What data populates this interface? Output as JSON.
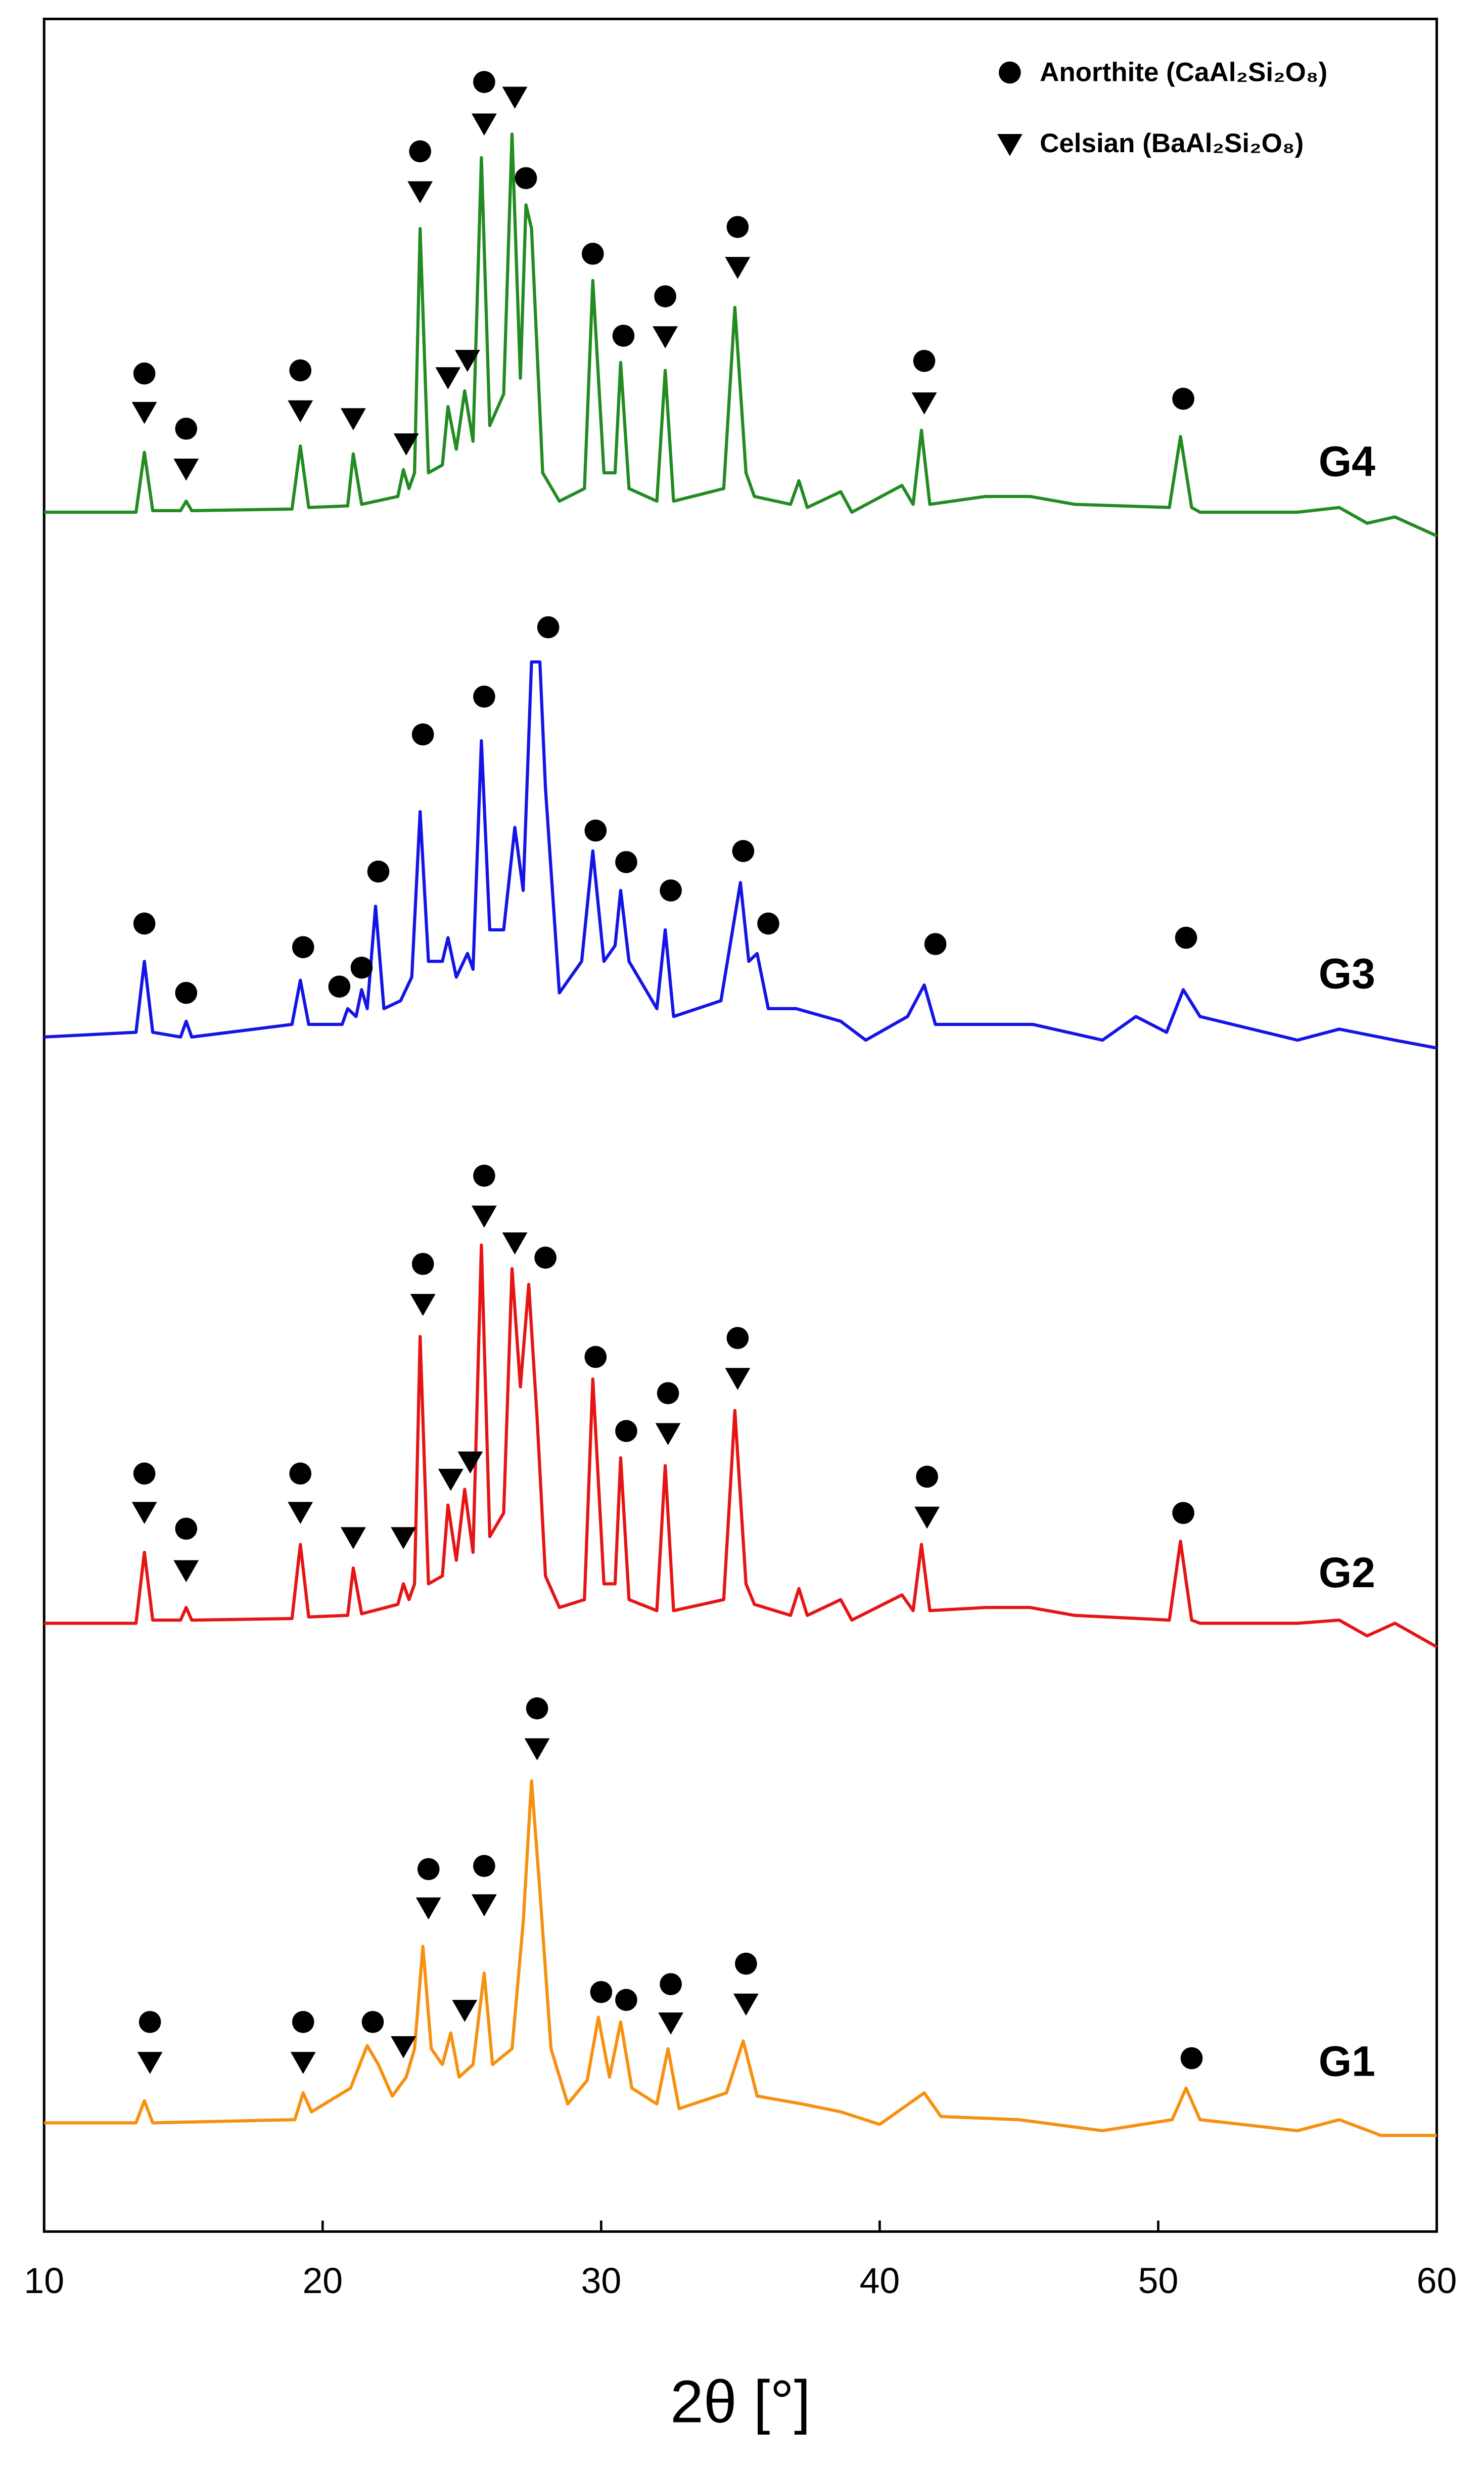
{
  "chart_data": {
    "type": "line",
    "xlabel": "2θ [°]",
    "xlim": [
      10,
      60
    ],
    "xticks": [
      10,
      20,
      30,
      40,
      50,
      60
    ],
    "ylim": [
      0,
      1404
    ],
    "legend": [
      "Anorthite (CaAl₂Si₂O₈)",
      "Celsian (BaAl₂Si₂O₈)"
    ],
    "series": [
      {
        "name": "G4",
        "color": "#228b22",
        "x": [
          10,
          13.3,
          13.6,
          13.9,
          14.9,
          15.1,
          15.3,
          18.9,
          19.2,
          19.5,
          20.9,
          21.1,
          21.4,
          22.7,
          22.9,
          23.1,
          23.3,
          23.5,
          23.8,
          24.3,
          24.5,
          24.8,
          25.1,
          25.4,
          25.7,
          26.0,
          26.5,
          26.8,
          27.1,
          27.3,
          27.5,
          27.9,
          28.5,
          29.4,
          29.7,
          30.1,
          30.5,
          30.7,
          31.0,
          32.0,
          32.3,
          32.6,
          34.4,
          34.8,
          35.2,
          35.5,
          36.8,
          37.1,
          37.4,
          38.6,
          39.0,
          40.8,
          41.2,
          41.5,
          41.8,
          43.8,
          45.4,
          47,
          50.4,
          50.8,
          51.2,
          51.5,
          55,
          56.5,
          57.5,
          58.5,
          60
        ],
        "values": [
          1091,
          1091,
          1129,
          1092,
          1092,
          1098,
          1092,
          1093,
          1133,
          1094,
          1095,
          1128,
          1096,
          1101,
          1118,
          1106,
          1116,
          1271,
          1116,
          1121,
          1158,
          1131,
          1168,
          1136,
          1316,
          1146,
          1166,
          1331,
          1176,
          1286,
          1271,
          1116,
          1098,
          1106,
          1238,
          1116,
          1116,
          1186,
          1106,
          1098,
          1181,
          1098,
          1106,
          1221,
          1116,
          1101,
          1096,
          1111,
          1094,
          1104,
          1091,
          1108,
          1096,
          1143,
          1096,
          1101,
          1101,
          1096,
          1094,
          1139,
          1094,
          1091,
          1091,
          1094,
          1084,
          1088,
          1076
        ],
        "anorthite": {
          "x": [
            13.6,
            15.1,
            19.2,
            23.5,
            25.8,
            27.3,
            29.7,
            30.8,
            32.3,
            34.9,
            41.6,
            50.9
          ],
          "y": [
            1179,
            1144,
            1181,
            1320,
            1364,
            1303,
            1255,
            1203,
            1228,
            1272,
            1187,
            1163
          ]
        },
        "celsian": {
          "x": [
            13.6,
            15.1,
            19.2,
            21.1,
            23,
            23.5,
            24.5,
            25.2,
            25.8,
            26.9,
            32.3,
            34.9,
            41.6
          ],
          "y": [
            1154,
            1118,
            1155,
            1150,
            1134,
            1294,
            1176,
            1187,
            1337,
            1354,
            1202,
            1246,
            1160
          ]
        }
      },
      {
        "name": "G3",
        "color": "#1414e6",
        "x": [
          10,
          13.3,
          13.6,
          13.9,
          14.9,
          15.1,
          15.3,
          18.9,
          19.2,
          19.5,
          20.7,
          20.9,
          21.2,
          21.4,
          21.6,
          21.9,
          22.2,
          22.8,
          23.2,
          23.5,
          23.8,
          24.3,
          24.5,
          24.8,
          25.2,
          25.4,
          25.7,
          26.0,
          26.5,
          26.9,
          27.2,
          27.5,
          27.8,
          28.0,
          28.5,
          29.3,
          29.7,
          30.1,
          30.5,
          30.7,
          31.0,
          32.0,
          32.3,
          32.6,
          34.3,
          35.0,
          35.3,
          35.6,
          36.0,
          37.0,
          38.6,
          39.5,
          41.0,
          41.6,
          42.0,
          45.5,
          48,
          49.2,
          50.3,
          50.9,
          51.5,
          55,
          56.5,
          58.5,
          60
        ],
        "values": [
          758,
          761,
          806,
          761,
          758,
          768,
          758,
          766,
          794,
          766,
          766,
          776,
          771,
          788,
          776,
          841,
          776,
          781,
          796,
          901,
          806,
          806,
          821,
          796,
          811,
          801,
          946,
          826,
          826,
          891,
          851,
          996,
          996,
          916,
          786,
          806,
          876,
          806,
          816,
          851,
          806,
          776,
          826,
          771,
          781,
          856,
          806,
          811,
          776,
          776,
          768,
          756,
          771,
          791,
          766,
          766,
          756,
          771,
          761,
          788,
          771,
          756,
          763,
          756,
          751
        ],
        "anorthite": {
          "x": [
            13.6,
            15.1,
            19.3,
            20.6,
            21.4,
            22.0,
            23.6,
            25.8,
            28.1,
            29.8,
            30.9,
            32.5,
            35.1,
            36.0,
            42.0,
            51.0
          ],
          "y": [
            830,
            786,
            815,
            790,
            802,
            863,
            950,
            974,
            1018,
            889,
            869,
            851,
            876,
            830,
            817,
            821
          ]
        }
      },
      {
        "name": "G2",
        "color": "#e61414",
        "x": [
          10,
          13.3,
          13.6,
          13.9,
          14.9,
          15.1,
          15.3,
          18.9,
          19.2,
          19.5,
          20.9,
          21.1,
          21.4,
          22.7,
          22.9,
          23.1,
          23.3,
          23.5,
          23.8,
          24.3,
          24.5,
          24.8,
          25.1,
          25.4,
          25.7,
          26.0,
          26.5,
          26.8,
          27.1,
          27.4,
          27.7,
          28.0,
          28.5,
          29.4,
          29.7,
          30.1,
          30.5,
          30.7,
          31.0,
          32.0,
          32.3,
          32.6,
          34.4,
          34.8,
          35.2,
          35.5,
          36.8,
          37.1,
          37.4,
          38.6,
          39.0,
          40.8,
          41.2,
          41.5,
          41.8,
          43.8,
          45.4,
          47,
          50.4,
          50.8,
          51.2,
          51.5,
          55,
          56.5,
          57.5,
          58.5,
          60
        ],
        "values": [
          386,
          386,
          431,
          388,
          388,
          396,
          388,
          389,
          436,
          390,
          391,
          421,
          392,
          398,
          411,
          401,
          411,
          568,
          411,
          416,
          461,
          426,
          471,
          431,
          626,
          441,
          456,
          611,
          536,
          601,
          516,
          416,
          396,
          401,
          541,
          411,
          411,
          491,
          401,
          394,
          486,
          394,
          401,
          521,
          411,
          398,
          391,
          408,
          391,
          401,
          388,
          404,
          394,
          436,
          394,
          396,
          396,
          391,
          388,
          438,
          388,
          386,
          386,
          388,
          378,
          386,
          371
        ],
        "anorthite": {
          "x": [
            13.6,
            15.1,
            19.2,
            23.6,
            25.8,
            28.0,
            29.8,
            30.9,
            32.4,
            34.9,
            41.7,
            50.9
          ],
          "y": [
            481,
            446,
            481,
            614,
            670,
            618,
            555,
            508,
            532,
            567,
            479,
            456
          ]
        },
        "celsian": {
          "x": [
            13.6,
            15.1,
            19.2,
            21.1,
            22.9,
            23.6,
            24.6,
            25.3,
            25.8,
            26.9,
            32.4,
            34.9,
            41.7
          ],
          "y": [
            456,
            419,
            456,
            440,
            440,
            588,
            477,
            488,
            644,
            627,
            506,
            541,
            453
          ]
        }
      },
      {
        "name": "G1",
        "color": "#f7900f",
        "x": [
          10,
          13.3,
          13.6,
          13.9,
          19.0,
          19.3,
          19.6,
          21.0,
          21.6,
          22.0,
          22.5,
          23.0,
          23.3,
          23.6,
          23.9,
          24.3,
          24.6,
          24.9,
          25.4,
          25.8,
          26.1,
          26.8,
          27.2,
          27.5,
          27.8,
          28.2,
          28.8,
          29.5,
          29.9,
          30.3,
          30.7,
          31.1,
          32.0,
          32.4,
          32.8,
          34.5,
          35.1,
          35.6,
          37.2,
          38.6,
          40,
          41.6,
          42.2,
          45,
          48,
          50.5,
          51.0,
          51.5,
          55,
          56.5,
          58,
          60
        ],
        "values": [
          69,
          69,
          83,
          69,
          71,
          88,
          76,
          91,
          118,
          106,
          86,
          98,
          116,
          181,
          116,
          106,
          126,
          98,
          106,
          164,
          106,
          116,
          196,
          286,
          216,
          116,
          81,
          96,
          136,
          98,
          133,
          91,
          81,
          116,
          78,
          88,
          121,
          86,
          81,
          76,
          68,
          88,
          73,
          71,
          64,
          71,
          91,
          71,
          64,
          71,
          61,
          61
        ],
        "anorthite": {
          "x": [
            13.8,
            19.3,
            21.8,
            23.8,
            25.8,
            27.7,
            30.0,
            30.9,
            32.5,
            35.2,
            51.2
          ],
          "y": [
            133,
            133,
            133,
            230,
            232,
            332,
            152,
            147,
            157,
            170,
            110
          ]
        },
        "celsian": {
          "x": [
            13.8,
            19.3,
            22.9,
            23.8,
            25.1,
            25.8,
            27.7,
            32.5,
            35.2
          ],
          "y": [
            107,
            107,
            117,
            205,
            140,
            207,
            306,
            132,
            144
          ]
        }
      }
    ]
  }
}
